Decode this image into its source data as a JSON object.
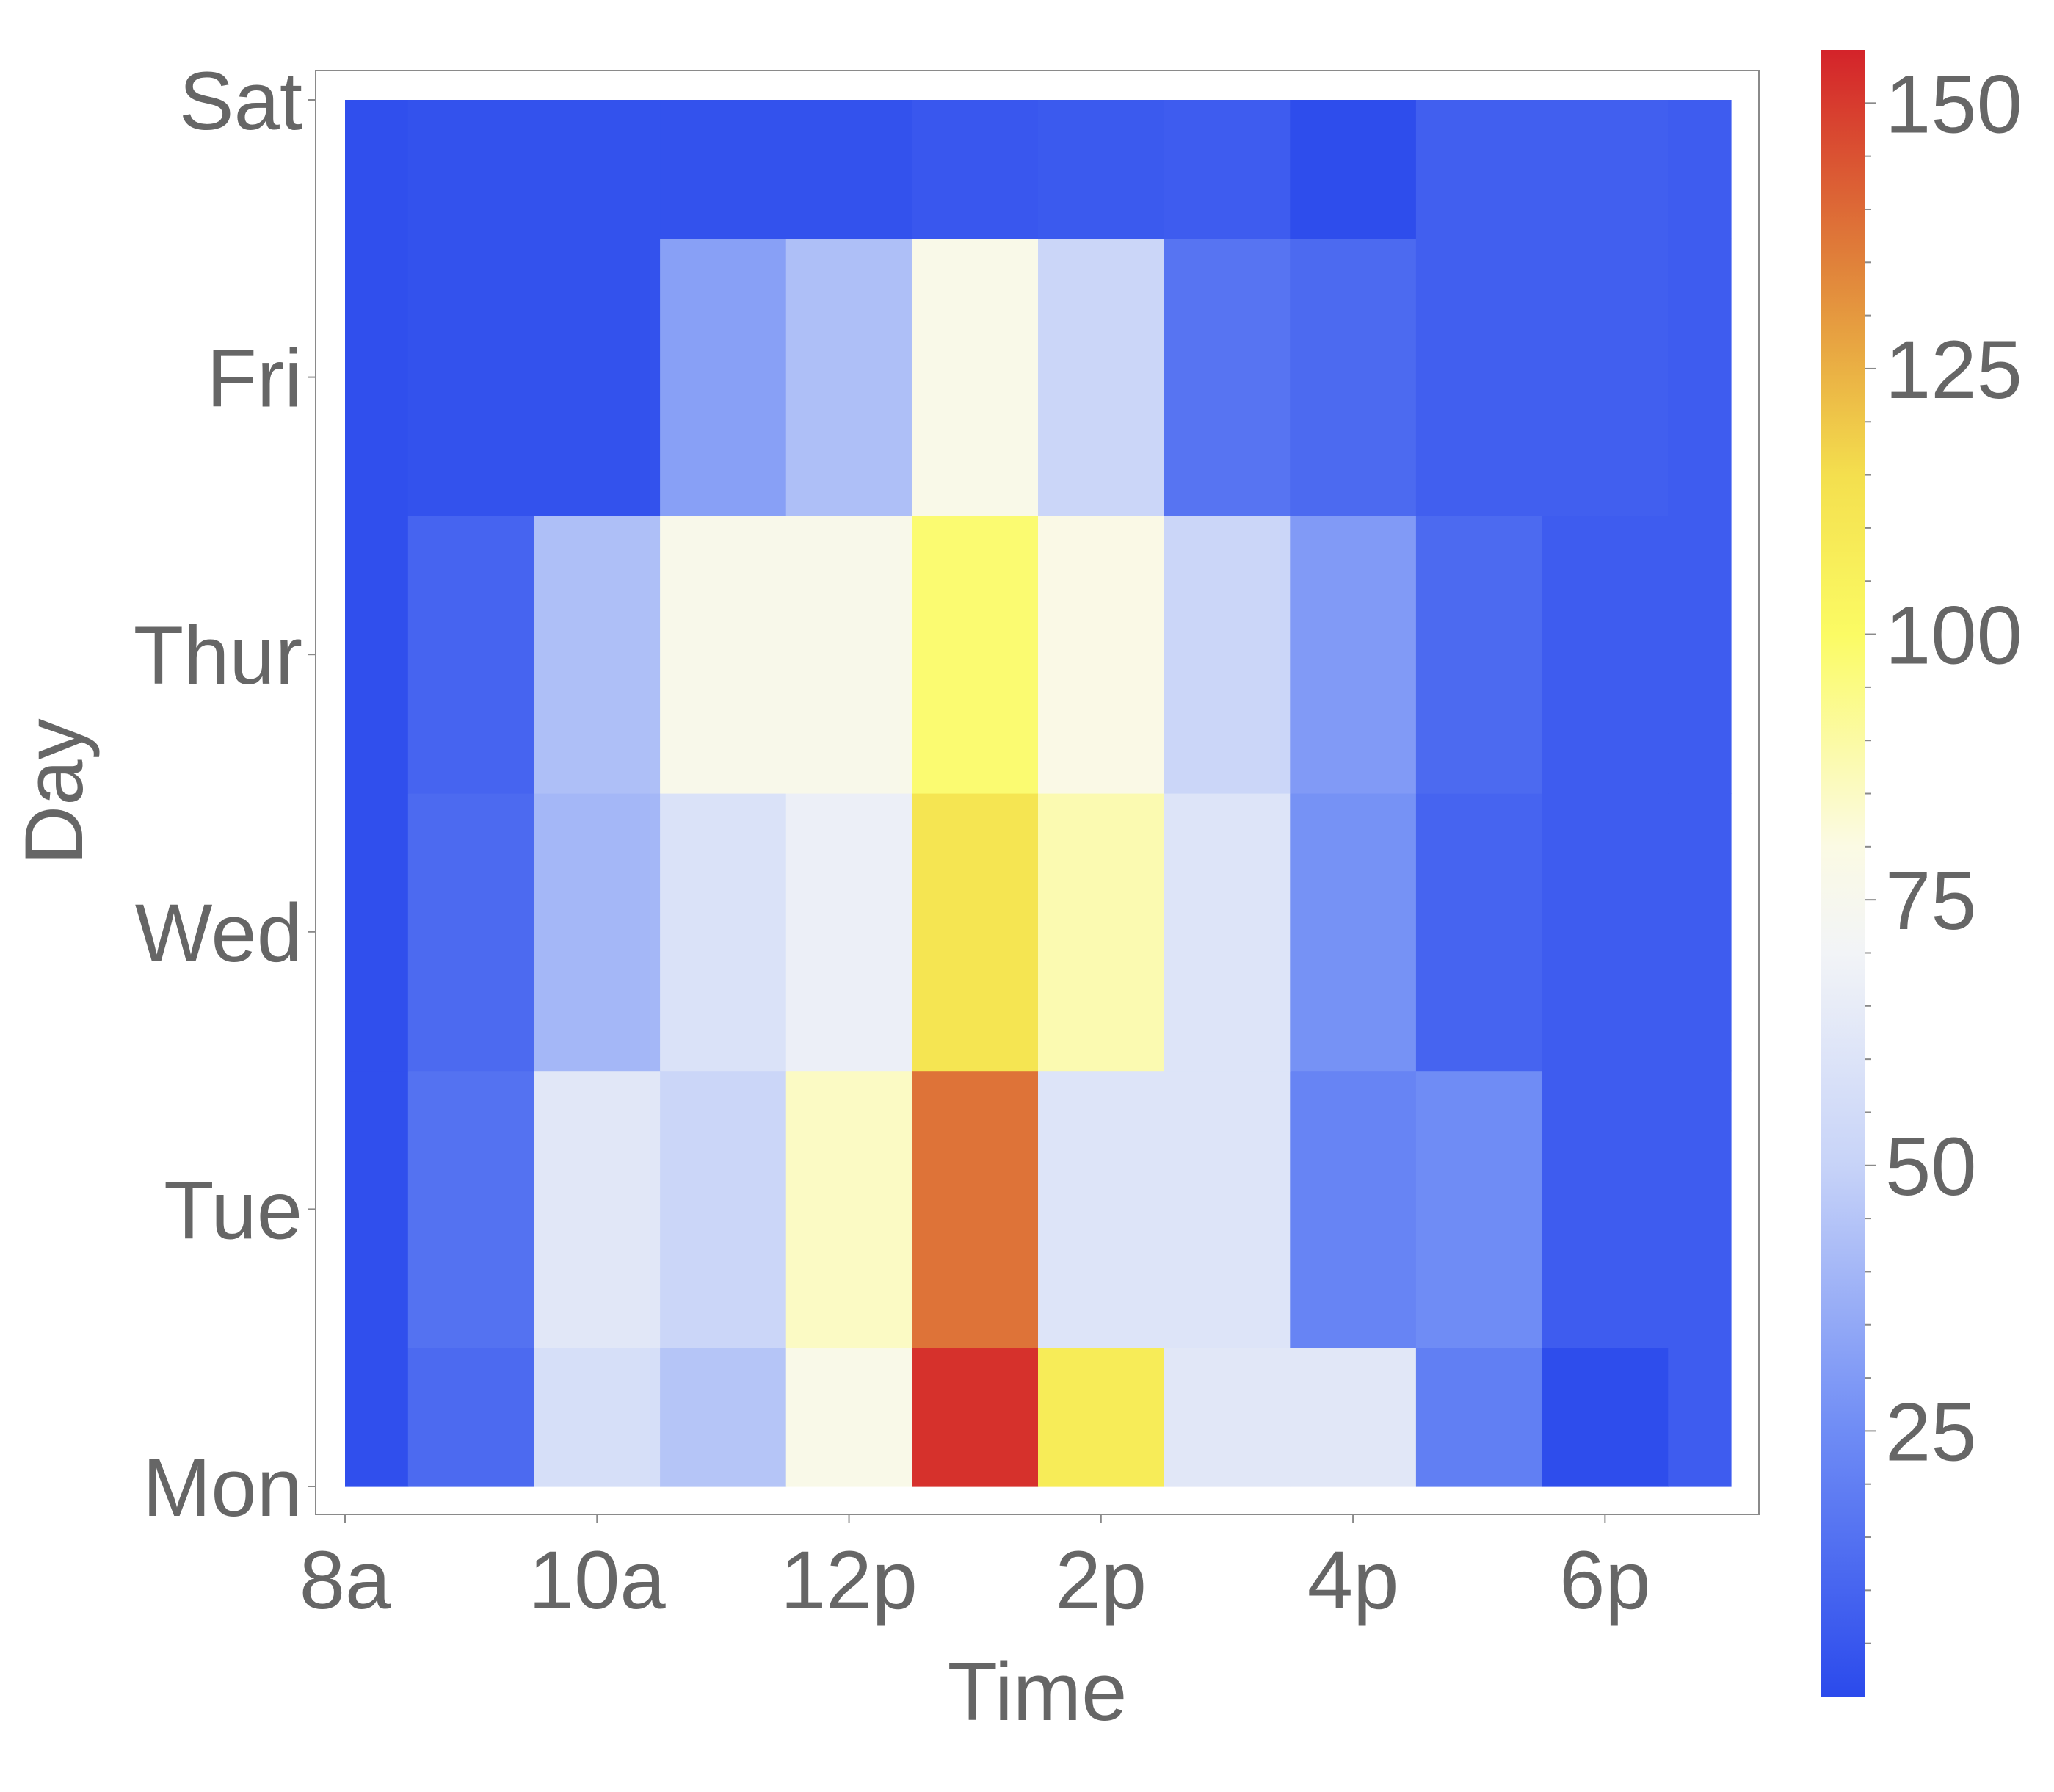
{
  "chart_data": {
    "type": "heatmap",
    "title": "",
    "xlabel": "Time",
    "ylabel": "Day",
    "x_tick_labels": [
      "8a",
      "10a",
      "12p",
      "2p",
      "4p",
      "6p"
    ],
    "x_tick_values": [
      8,
      10,
      12,
      14,
      16,
      18
    ],
    "y_tick_labels": [
      "Mon",
      "Tue",
      "Wed",
      "Thur",
      "Fri",
      "Sat"
    ],
    "y_tick_values": [
      0,
      1,
      2,
      3,
      4,
      5
    ],
    "x_edges": [
      8,
      8.5,
      9.5,
      10.5,
      11.5,
      12.5,
      13.5,
      14.5,
      15.5,
      16.5,
      17.5,
      18.5,
      19
    ],
    "y_edges": [
      0,
      0.5,
      1.5,
      2.5,
      3.5,
      4.5,
      5
    ],
    "values": [
      [
        2,
        12,
        57,
        45,
        78,
        152,
        108,
        62,
        62,
        20,
        1,
        7
      ],
      [
        2,
        15,
        62,
        52,
        85,
        138,
        60,
        60,
        22,
        25,
        7,
        7
      ],
      [
        2,
        12,
        40,
        59,
        67,
        112,
        88,
        60,
        27,
        10,
        7,
        7
      ],
      [
        2,
        10,
        43,
        77,
        77,
        98,
        79,
        52,
        30,
        12,
        7,
        7
      ],
      [
        2,
        3,
        3,
        32,
        43,
        78,
        52,
        16,
        12,
        8,
        8,
        7
      ],
      [
        2,
        3,
        3,
        3,
        3,
        5,
        6,
        7,
        1,
        8,
        8,
        7
      ]
    ],
    "colorbar": {
      "range": [
        0,
        155
      ],
      "ticks": [
        25,
        50,
        75,
        100,
        125,
        150
      ],
      "tick_labels": [
        "25",
        "50",
        "75",
        "100",
        "125",
        "150"
      ],
      "stops": [
        {
          "v": 0,
          "color": "#2b4aec"
        },
        {
          "v": 25,
          "color": "#6f8cf5"
        },
        {
          "v": 50,
          "color": "#c7d3f8"
        },
        {
          "v": 70,
          "color": "#f2f4f7"
        },
        {
          "v": 80,
          "color": "#fbfae4"
        },
        {
          "v": 100,
          "color": "#fbfb64"
        },
        {
          "v": 115,
          "color": "#f4df4e"
        },
        {
          "v": 135,
          "color": "#e0813a"
        },
        {
          "v": 155,
          "color": "#d4232a"
        }
      ]
    },
    "grid": false,
    "legend": "colorbar-right"
  }
}
